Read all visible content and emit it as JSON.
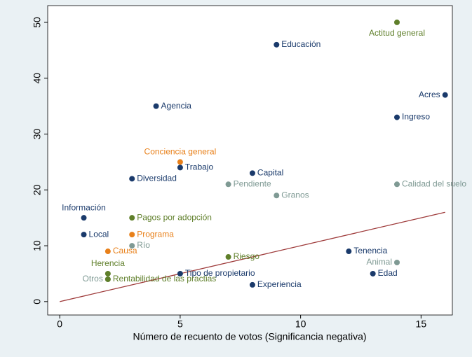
{
  "chart_data": {
    "type": "scatter",
    "x_label": "Número de recuento de votos (Significancia negativa)",
    "xlim": [
      -0.5,
      16.3
    ],
    "xticks": [
      0,
      5,
      10,
      15
    ],
    "ylim": [
      -2.4,
      53
    ],
    "yticks": [
      0,
      10,
      20,
      30,
      40,
      50
    ],
    "grid": false,
    "points": [
      {
        "label": "Actitud general",
        "x": 14,
        "y": 50,
        "color": "#5f7f2a"
      },
      {
        "label": "Educación",
        "x": 9,
        "y": 46,
        "color": "#1a3a6b"
      },
      {
        "label": "Acres",
        "x": 16,
        "y": 37,
        "color": "#1a3a6b"
      },
      {
        "label": "Agencia",
        "x": 4,
        "y": 35,
        "color": "#1a3a6b"
      },
      {
        "label": "Ingreso",
        "x": 14,
        "y": 33,
        "color": "#1a3a6b"
      },
      {
        "label": "Conciencia general",
        "x": 5,
        "y": 25,
        "color": "#e8801a"
      },
      {
        "label": "Trabajo",
        "x": 5,
        "y": 24,
        "color": "#1a3a6b"
      },
      {
        "label": "Capital",
        "x": 8,
        "y": 23,
        "color": "#1a3a6b"
      },
      {
        "label": "Diversidad",
        "x": 3,
        "y": 22,
        "color": "#1a3a6b"
      },
      {
        "label": "Pendiente",
        "x": 7,
        "y": 21,
        "color": "#7f9a94"
      },
      {
        "label": "Calidad del suelo",
        "x": 14,
        "y": 21,
        "color": "#7f9a94"
      },
      {
        "label": "Granos",
        "x": 9,
        "y": 19,
        "color": "#7f9a94"
      },
      {
        "label": "Información",
        "x": 1,
        "y": 15,
        "color": "#1a3a6b"
      },
      {
        "label": "Pagos por adopción",
        "x": 3,
        "y": 15,
        "color": "#5f7f2a"
      },
      {
        "label": "Local",
        "x": 1,
        "y": 12,
        "color": "#1a3a6b"
      },
      {
        "label": "Programa",
        "x": 3,
        "y": 12,
        "color": "#e8801a"
      },
      {
        "label": "Río",
        "x": 3,
        "y": 10,
        "color": "#7f9a94"
      },
      {
        "label": "Causa",
        "x": 2,
        "y": 9,
        "color": "#e8801a"
      },
      {
        "label": "Riesgo",
        "x": 7,
        "y": 8,
        "color": "#5f7f2a"
      },
      {
        "label": "Tenencia",
        "x": 12,
        "y": 9,
        "color": "#1a3a6b"
      },
      {
        "label": "Animal",
        "x": 14,
        "y": 7,
        "color": "#7f9a94"
      },
      {
        "label": "Herencia",
        "x": 2,
        "y": 5,
        "color": "#5f7f2a"
      },
      {
        "label": "Tipo de propietario",
        "x": 5,
        "y": 5,
        "color": "#1a3a6b"
      },
      {
        "label": "Edad",
        "x": 13,
        "y": 5,
        "color": "#1a3a6b"
      },
      {
        "label": "Otros",
        "x": 2,
        "y": 4,
        "color": "#7f9a94"
      },
      {
        "label": "Rentabilidad de las practias",
        "x": 2,
        "y": 4,
        "color": "#5f7f2a"
      },
      {
        "label": "Experiencia",
        "x": 8,
        "y": 3,
        "color": "#1a3a6b"
      }
    ],
    "fit_line": {
      "x": [
        0,
        16
      ],
      "y": [
        0,
        16
      ],
      "color": "#9e3a3a"
    }
  }
}
